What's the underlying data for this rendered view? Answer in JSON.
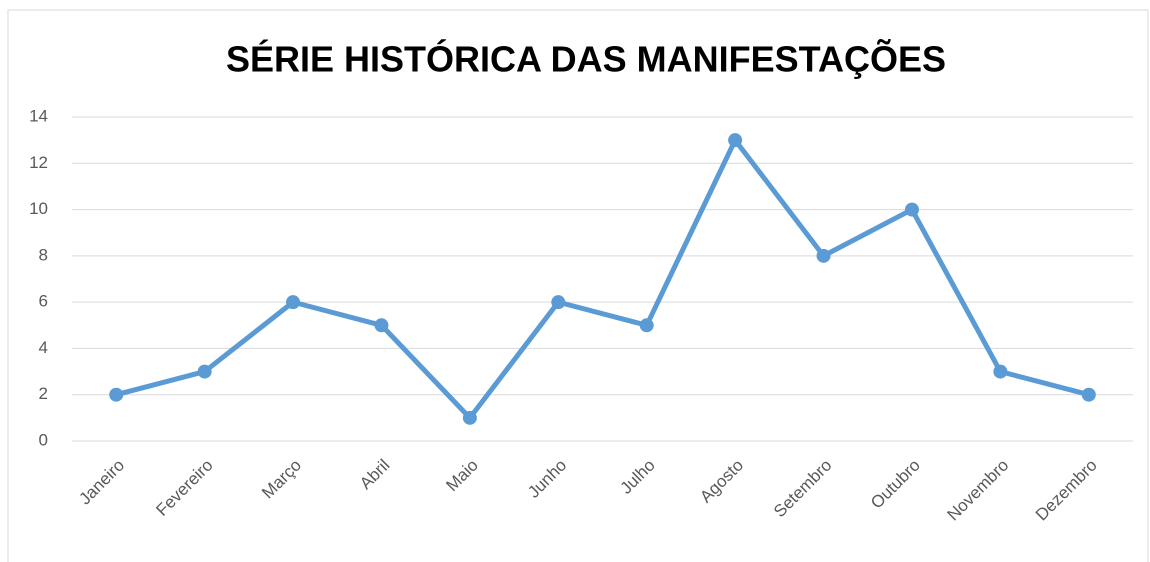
{
  "chart_data": {
    "type": "line",
    "title": "SÉRIE HISTÓRICA DAS MANIFESTAÇÕES",
    "categories": [
      "Janeiro",
      "Fevereiro",
      "Março",
      "Abril",
      "Maio",
      "Junho",
      "Julho",
      "Agosto",
      "Setembro",
      "Outubro",
      "Novembro",
      "Dezembro"
    ],
    "values": [
      2,
      3,
      6,
      5,
      1,
      6,
      5,
      13,
      8,
      10,
      3,
      2
    ],
    "color": "#5b9bd5",
    "ylim": [
      0,
      14
    ],
    "yticks": [
      0,
      2,
      4,
      6,
      8,
      10,
      12,
      14
    ],
    "grid": true
  }
}
